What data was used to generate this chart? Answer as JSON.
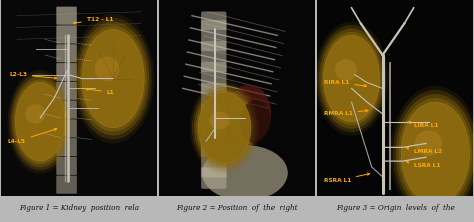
{
  "bg": "#050505",
  "outer_bg": "#b8b8b8",
  "fig_w": 4.74,
  "fig_h": 2.22,
  "dpi": 100,
  "panel_sep_color": "#b8b8b8",
  "captions": [
    "Figure 1 = Kidney  position  rela",
    "Figure 2 = Position  of  the  right",
    "Figure 3 = Origin  levels  of  the"
  ],
  "caption_fs": 5.2,
  "caption_color": "#111111",
  "ann_color": "#ffaa00",
  "ann_fs": 4.2,
  "vessel_color": "#c8c4b8",
  "kidney_face": "#8b6a10",
  "kidney_edge": "#a07818",
  "spine_color": "#a09888",
  "bone_color": "#b0a890",
  "rib_color": "#b8b0a0",
  "dark_tissue": "#3a1a08",
  "red_tissue": "#5a1a10"
}
